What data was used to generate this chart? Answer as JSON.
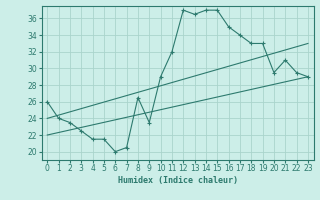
{
  "xlabel": "Humidex (Indice chaleur)",
  "xlim": [
    -0.5,
    23.5
  ],
  "ylim": [
    19,
    37.5
  ],
  "yticks": [
    20,
    22,
    24,
    26,
    28,
    30,
    32,
    34,
    36
  ],
  "xticks": [
    0,
    1,
    2,
    3,
    4,
    5,
    6,
    7,
    8,
    9,
    10,
    11,
    12,
    13,
    14,
    15,
    16,
    17,
    18,
    19,
    20,
    21,
    22,
    23
  ],
  "bg_color": "#cceee8",
  "grid_color": "#aad4cc",
  "line_color": "#2d7a6e",
  "curve1_x": [
    0,
    1,
    2,
    3,
    4,
    5,
    6,
    7,
    8,
    9,
    10,
    11,
    12,
    13,
    14,
    15,
    16,
    17,
    18,
    19,
    20,
    21,
    22,
    23
  ],
  "curve1_y": [
    26,
    24,
    23.5,
    22.5,
    21.5,
    21.5,
    20,
    20.5,
    26.5,
    23.5,
    29,
    32,
    37,
    36.5,
    37,
    37,
    35,
    34,
    33,
    33,
    29.5,
    31,
    29.5,
    29
  ],
  "line1_x": [
    0,
    23
  ],
  "line1_y": [
    24,
    33
  ],
  "line2_x": [
    0,
    23
  ],
  "line2_y": [
    22,
    29
  ]
}
